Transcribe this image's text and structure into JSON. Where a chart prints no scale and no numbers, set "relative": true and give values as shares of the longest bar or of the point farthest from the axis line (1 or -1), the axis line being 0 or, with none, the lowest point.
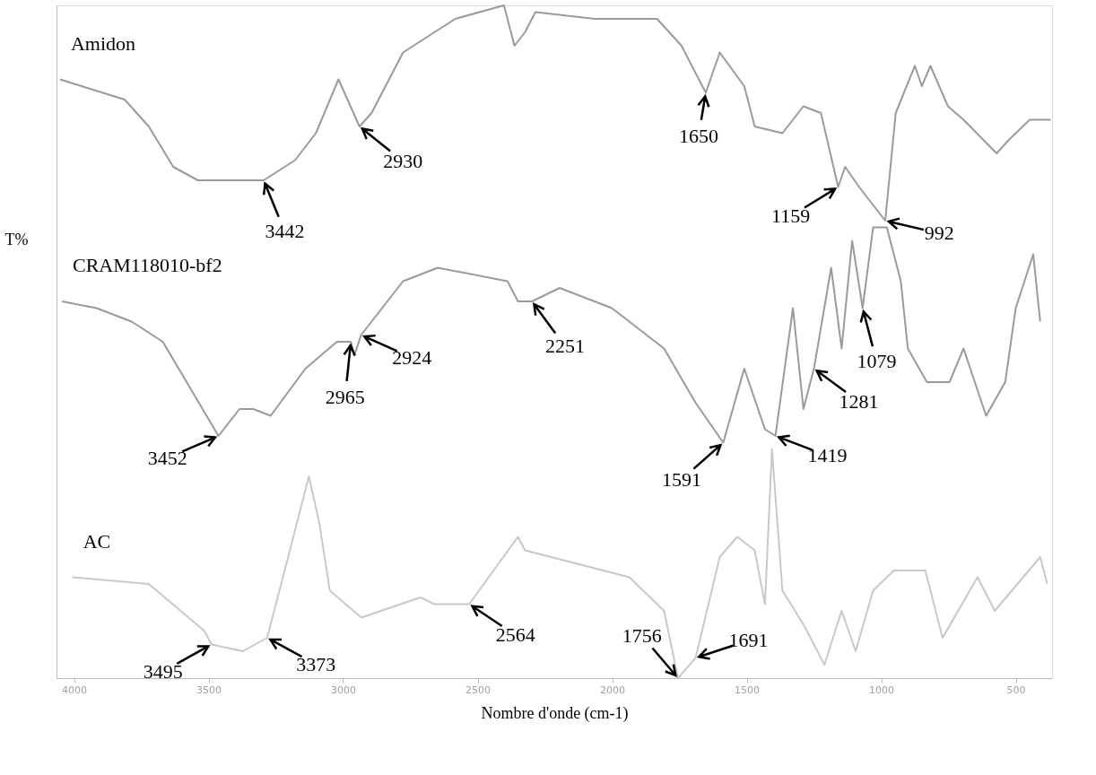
{
  "chart_data": {
    "type": "line",
    "relative": true,
    "xlabel": "Nombre d'onde (cm-1)",
    "ylabel": "T%",
    "xlim": [
      4065,
      365
    ],
    "xticks": [
      4000,
      3500,
      3000,
      2500,
      2000,
      1500,
      1000,
      500
    ],
    "grid": false,
    "legend": false,
    "marker": "none",
    "line_style": "solid",
    "series": [
      {
        "name": "Amidon",
        "color": "#9a9a9a",
        "x": [
          4052,
          3812,
          3722,
          3631,
          3540,
          3295,
          3178,
          3101,
          3017,
          2939,
          2894,
          2777,
          2583,
          2402,
          2363,
          2324,
          2285,
          2065,
          1833,
          1742,
          1652,
          1600,
          1509,
          1470,
          1367,
          1289,
          1224,
          1160,
          1134,
          1082,
          985,
          946,
          875,
          849,
          817,
          752,
          694,
          571,
          526,
          448,
          370
        ],
        "values": [
          0.89,
          0.86,
          0.82,
          0.76,
          0.74,
          0.74,
          0.77,
          0.81,
          0.89,
          0.82,
          0.84,
          0.93,
          0.98,
          1.0,
          0.94,
          0.96,
          0.99,
          0.98,
          0.98,
          0.94,
          0.87,
          0.93,
          0.88,
          0.82,
          0.81,
          0.85,
          0.84,
          0.73,
          0.76,
          0.73,
          0.68,
          0.84,
          0.91,
          0.88,
          0.91,
          0.85,
          0.83,
          0.78,
          0.8,
          0.83,
          0.83
        ]
      },
      {
        "name": "CRAM118010-bf2",
        "color": "#9a9a9a",
        "x": [
          4045,
          3916,
          3786,
          3670,
          3463,
          3385,
          3334,
          3269,
          3140,
          3023,
          2971,
          2958,
          2933,
          2855,
          2777,
          2648,
          2389,
          2350,
          2298,
          2195,
          2001,
          1807,
          1691,
          1587,
          1509,
          1432,
          1393,
          1328,
          1289,
          1250,
          1186,
          1147,
          1108,
          1069,
          1030,
          979,
          927,
          901,
          830,
          746,
          694,
          610,
          539,
          500,
          435,
          409
        ],
        "values": [
          0.56,
          0.55,
          0.53,
          0.5,
          0.36,
          0.4,
          0.4,
          0.39,
          0.46,
          0.5,
          0.5,
          0.48,
          0.51,
          0.55,
          0.59,
          0.61,
          0.59,
          0.56,
          0.56,
          0.58,
          0.55,
          0.49,
          0.41,
          0.35,
          0.46,
          0.37,
          0.36,
          0.55,
          0.4,
          0.46,
          0.61,
          0.49,
          0.65,
          0.55,
          0.67,
          0.67,
          0.59,
          0.49,
          0.44,
          0.44,
          0.49,
          0.39,
          0.44,
          0.55,
          0.63,
          0.53
        ]
      },
      {
        "name": "AC",
        "color": "#c8c8c8",
        "x": [
          4006,
          3722,
          3515,
          3489,
          3372,
          3282,
          3204,
          3127,
          3088,
          3049,
          2932,
          2712,
          2661,
          2531,
          2350,
          2324,
          1936,
          1807,
          1755,
          1690,
          1600,
          1535,
          1470,
          1432,
          1406,
          1367,
          1289,
          1211,
          1147,
          1095,
          1030,
          953,
          836,
          772,
          642,
          578,
          409,
          383
        ],
        "values": [
          0.15,
          0.14,
          0.07,
          0.05,
          0.04,
          0.06,
          0.18,
          0.3,
          0.23,
          0.13,
          0.09,
          0.12,
          0.11,
          0.11,
          0.21,
          0.19,
          0.15,
          0.1,
          0.0,
          0.03,
          0.18,
          0.21,
          0.19,
          0.11,
          0.34,
          0.13,
          0.08,
          0.02,
          0.1,
          0.04,
          0.13,
          0.16,
          0.16,
          0.06,
          0.15,
          0.1,
          0.18,
          0.14
        ]
      }
    ],
    "annotations": [
      {
        "text": "3442",
        "x": 3295,
        "y": 0.74
      },
      {
        "text": "2930",
        "x": 2939,
        "y": 0.82
      },
      {
        "text": "1650",
        "x": 1652,
        "y": 0.87
      },
      {
        "text": "1159",
        "x": 1160,
        "y": 0.73
      },
      {
        "text": "992",
        "x": 985,
        "y": 0.68
      },
      {
        "text": "3452",
        "x": 3463,
        "y": 0.36
      },
      {
        "text": "2965",
        "x": 2971,
        "y": 0.5
      },
      {
        "text": "2924",
        "x": 2933,
        "y": 0.51
      },
      {
        "text": "2251",
        "x": 2298,
        "y": 0.56
      },
      {
        "text": "1591",
        "x": 1587,
        "y": 0.35
      },
      {
        "text": "1419",
        "x": 1393,
        "y": 0.36
      },
      {
        "text": "1281",
        "x": 1250,
        "y": 0.46
      },
      {
        "text": "1079",
        "x": 1069,
        "y": 0.55
      },
      {
        "text": "3495",
        "x": 3489,
        "y": 0.05
      },
      {
        "text": "3373",
        "x": 3282,
        "y": 0.06
      },
      {
        "text": "2564",
        "x": 2531,
        "y": 0.11
      },
      {
        "text": "1756",
        "x": 1755,
        "y": 0.0
      },
      {
        "text": "1691",
        "x": 1690,
        "y": 0.03
      }
    ]
  }
}
